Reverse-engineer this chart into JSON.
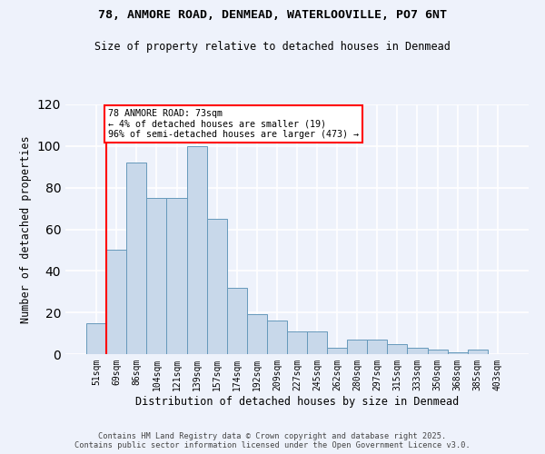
{
  "title1": "78, ANMORE ROAD, DENMEAD, WATERLOOVILLE, PO7 6NT",
  "title2": "Size of property relative to detached houses in Denmead",
  "xlabel": "Distribution of detached houses by size in Denmead",
  "ylabel": "Number of detached properties",
  "categories": [
    "51sqm",
    "69sqm",
    "86sqm",
    "104sqm",
    "121sqm",
    "139sqm",
    "157sqm",
    "174sqm",
    "192sqm",
    "209sqm",
    "227sqm",
    "245sqm",
    "262sqm",
    "280sqm",
    "297sqm",
    "315sqm",
    "333sqm",
    "350sqm",
    "368sqm",
    "385sqm",
    "403sqm"
  ],
  "values": [
    15,
    50,
    92,
    75,
    75,
    100,
    65,
    32,
    19,
    16,
    11,
    11,
    3,
    7,
    7,
    5,
    3,
    2,
    1,
    2,
    0
  ],
  "bar_color": "#c8d8ea",
  "bar_edge_color": "#6699bb",
  "annotation_text": "78 ANMORE ROAD: 73sqm\n← 4% of detached houses are smaller (19)\n96% of semi-detached houses are larger (473) →",
  "annotation_box_color": "white",
  "annotation_box_edge_color": "red",
  "ylim": [
    0,
    120
  ],
  "yticks": [
    0,
    20,
    40,
    60,
    80,
    100,
    120
  ],
  "background_color": "#eef2fb",
  "footer1": "Contains HM Land Registry data © Crown copyright and database right 2025.",
  "footer2": "Contains public sector information licensed under the Open Government Licence v3.0."
}
